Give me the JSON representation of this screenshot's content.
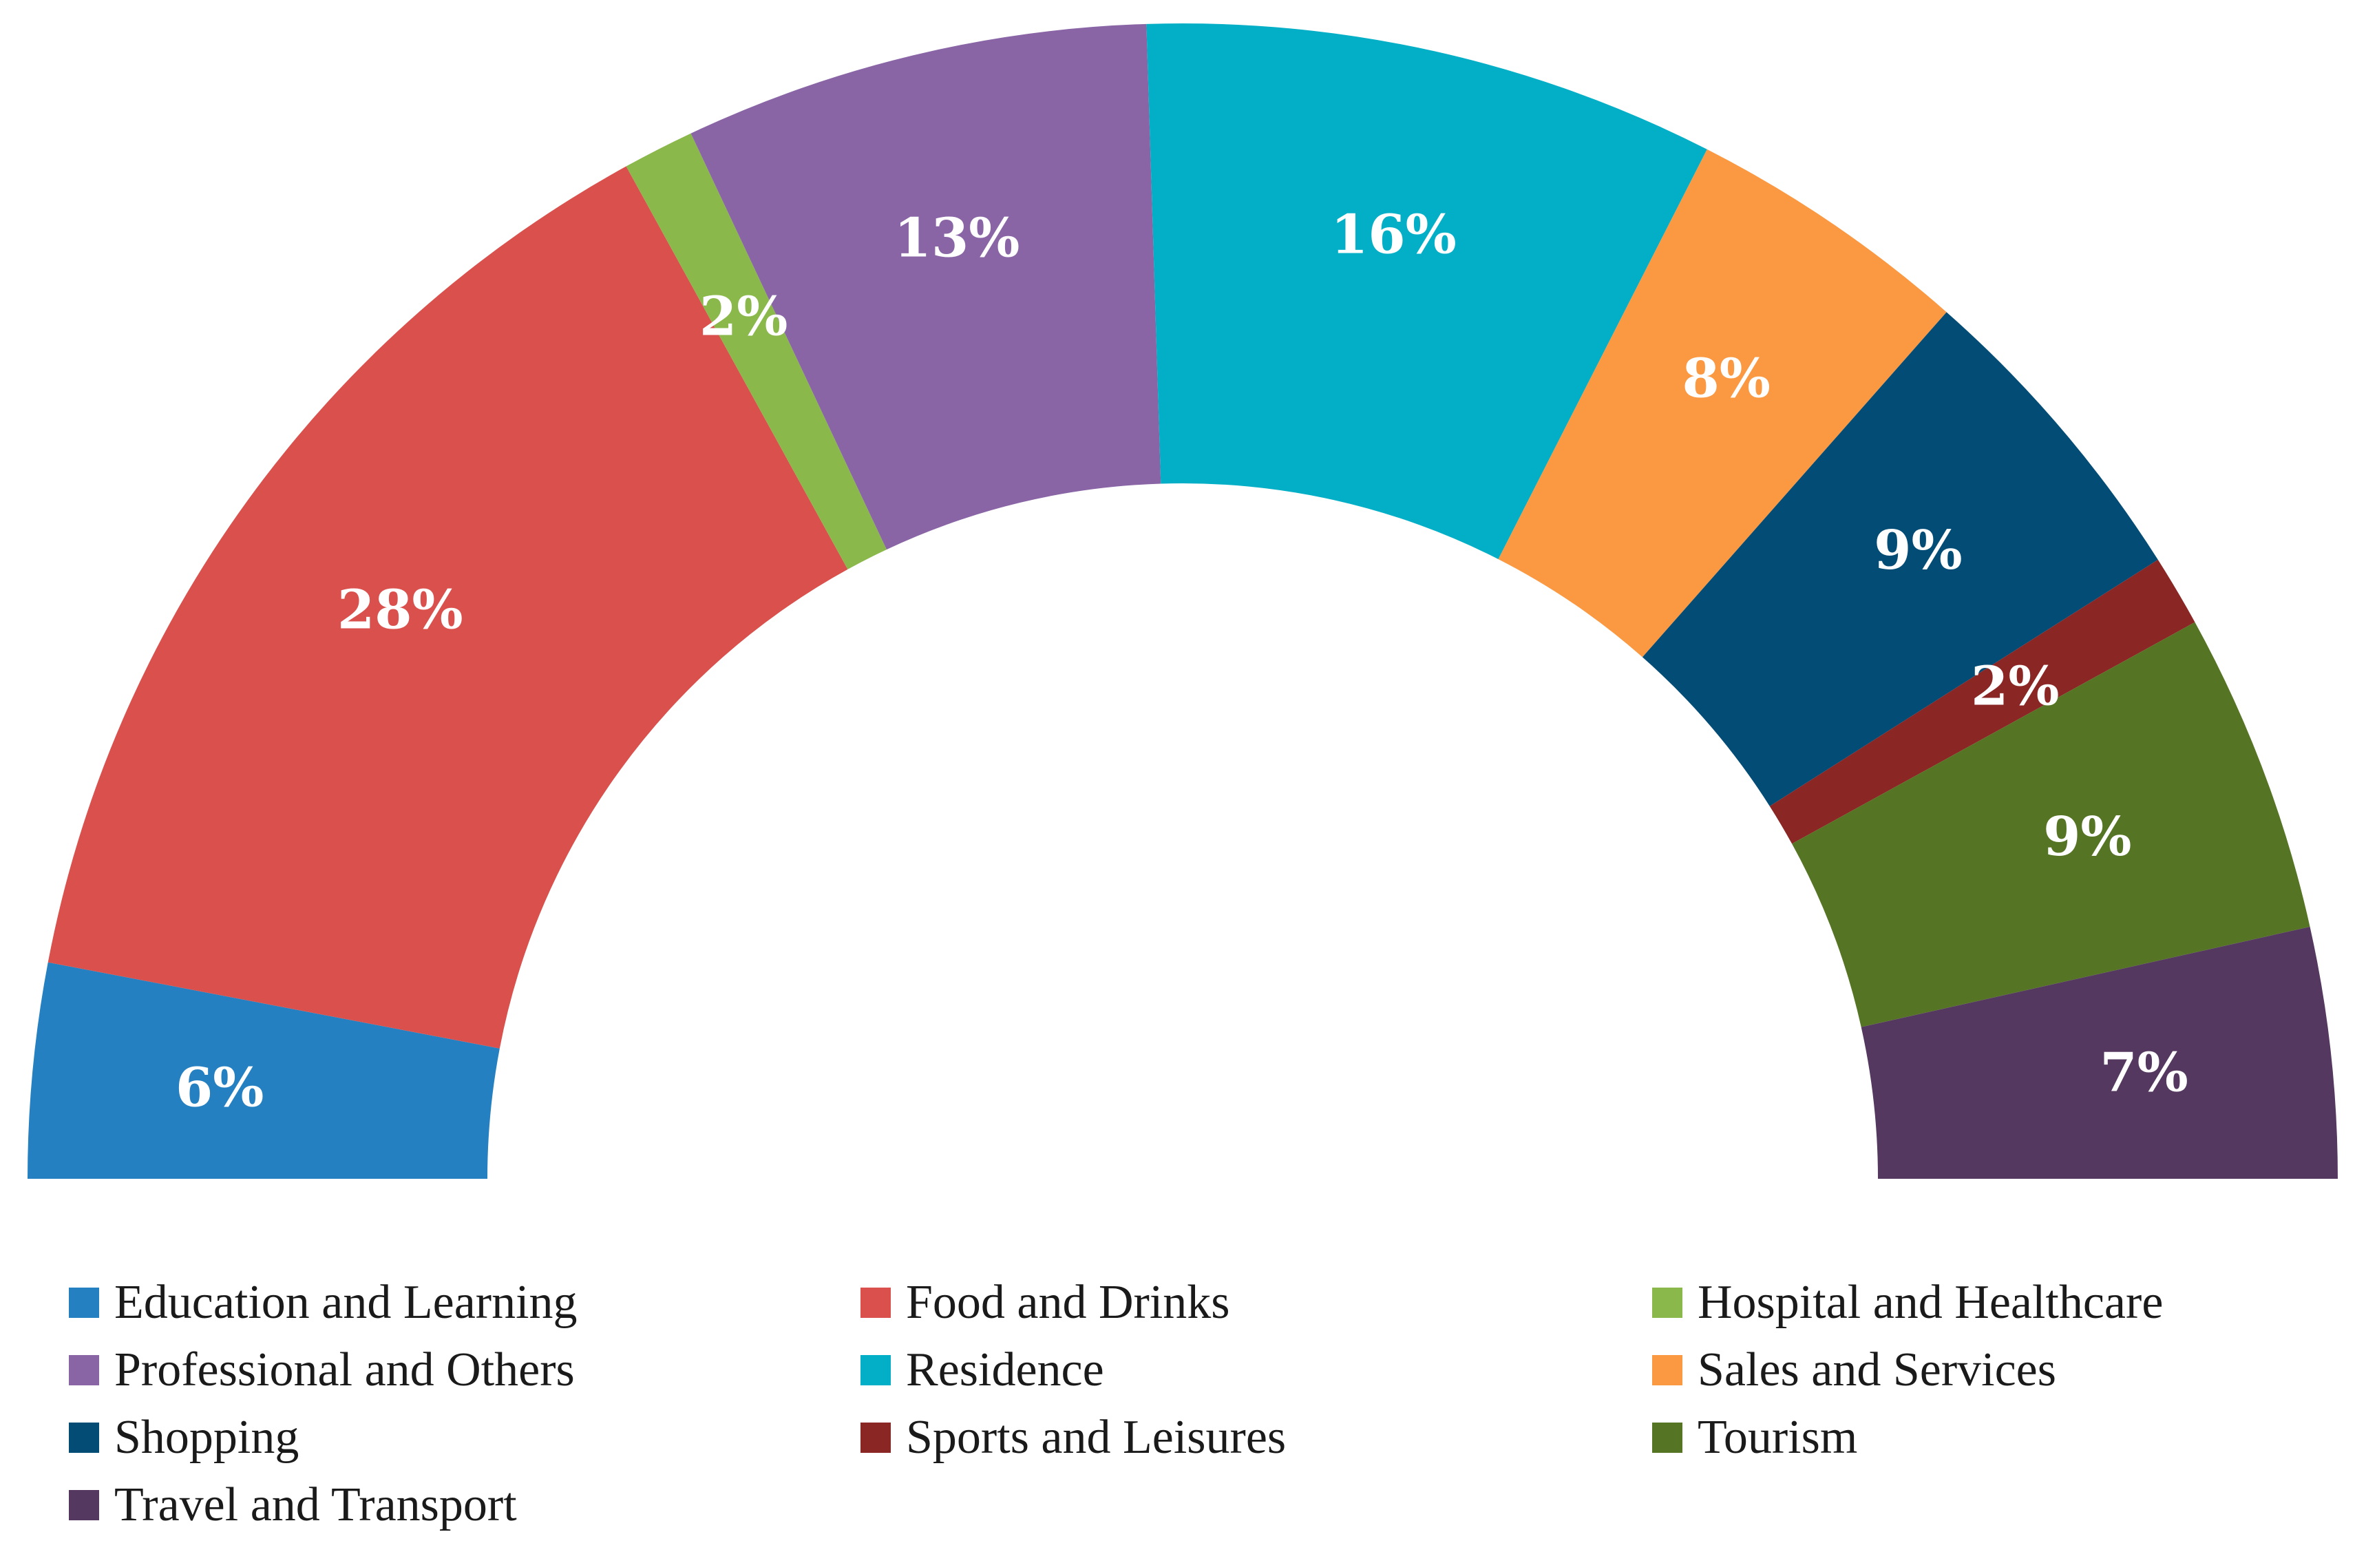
{
  "chart_data": {
    "type": "pie",
    "subtype": "half-donut",
    "title": "",
    "categories": [
      "Education and Learning",
      "Food and Drinks",
      "Hospital and Healthcare",
      "Professional and Others",
      "Residence",
      "Sales and Services",
      "Shopping",
      "Sports and Leisures",
      "Tourism",
      "Travel and Transport"
    ],
    "values": [
      6,
      28,
      2,
      13,
      16,
      8,
      9,
      2,
      9,
      7
    ],
    "labels": [
      "6%",
      "28%",
      "2%",
      "13%",
      "16%",
      "8%",
      "9%",
      "2%",
      "9%",
      "7%"
    ],
    "colors": [
      "#2580C1",
      "#D9504C",
      "#8AB84B",
      "#8965A6",
      "#03AFC7",
      "#FB9842",
      "#034C75",
      "#8A2624",
      "#557525",
      "#543860"
    ],
    "unit": "%",
    "legend_position": "bottom"
  }
}
